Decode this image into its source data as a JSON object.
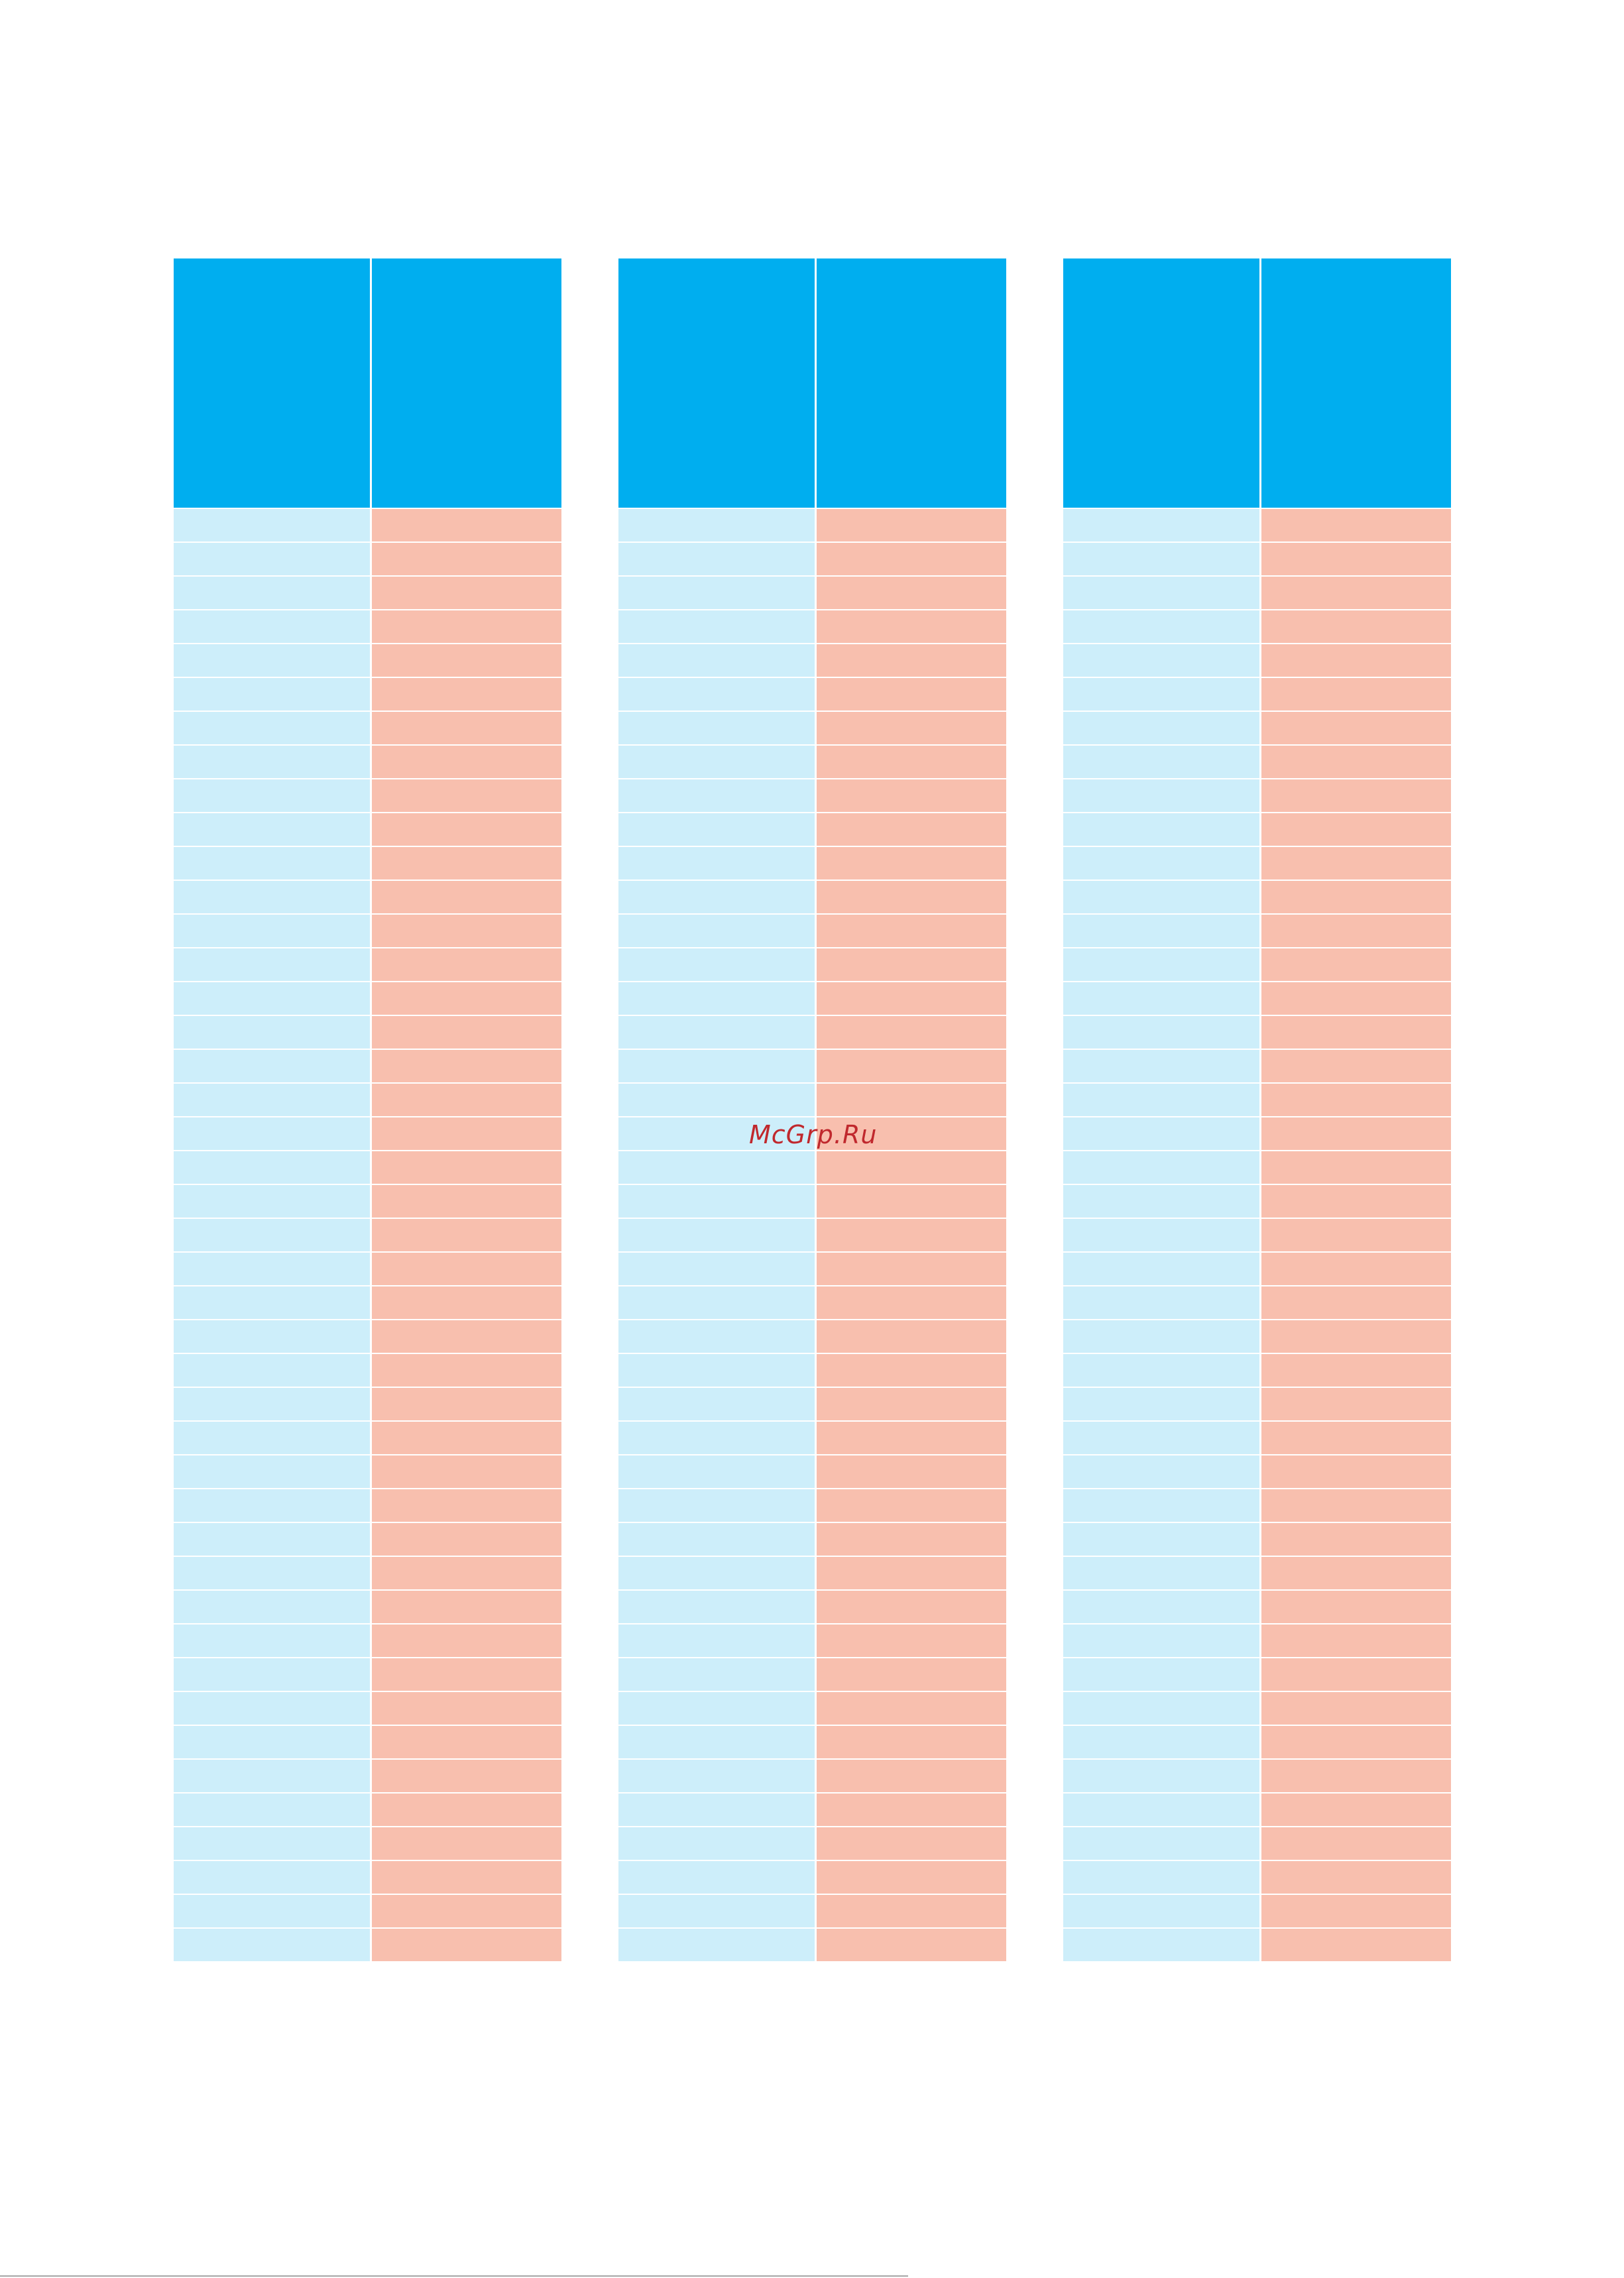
{
  "watermark": {
    "text": "McGrp.Ru"
  },
  "colors": {
    "header": "#00aeef",
    "code_column": "#cdeefa",
    "value_column": "#f8bfae",
    "watermark": "#c0282d"
  },
  "tables": [
    {
      "columns": [
        "",
        ""
      ],
      "rows": 43
    },
    {
      "columns": [
        "",
        ""
      ],
      "rows": 43
    },
    {
      "columns": [
        "",
        ""
      ],
      "rows": 43
    }
  ]
}
